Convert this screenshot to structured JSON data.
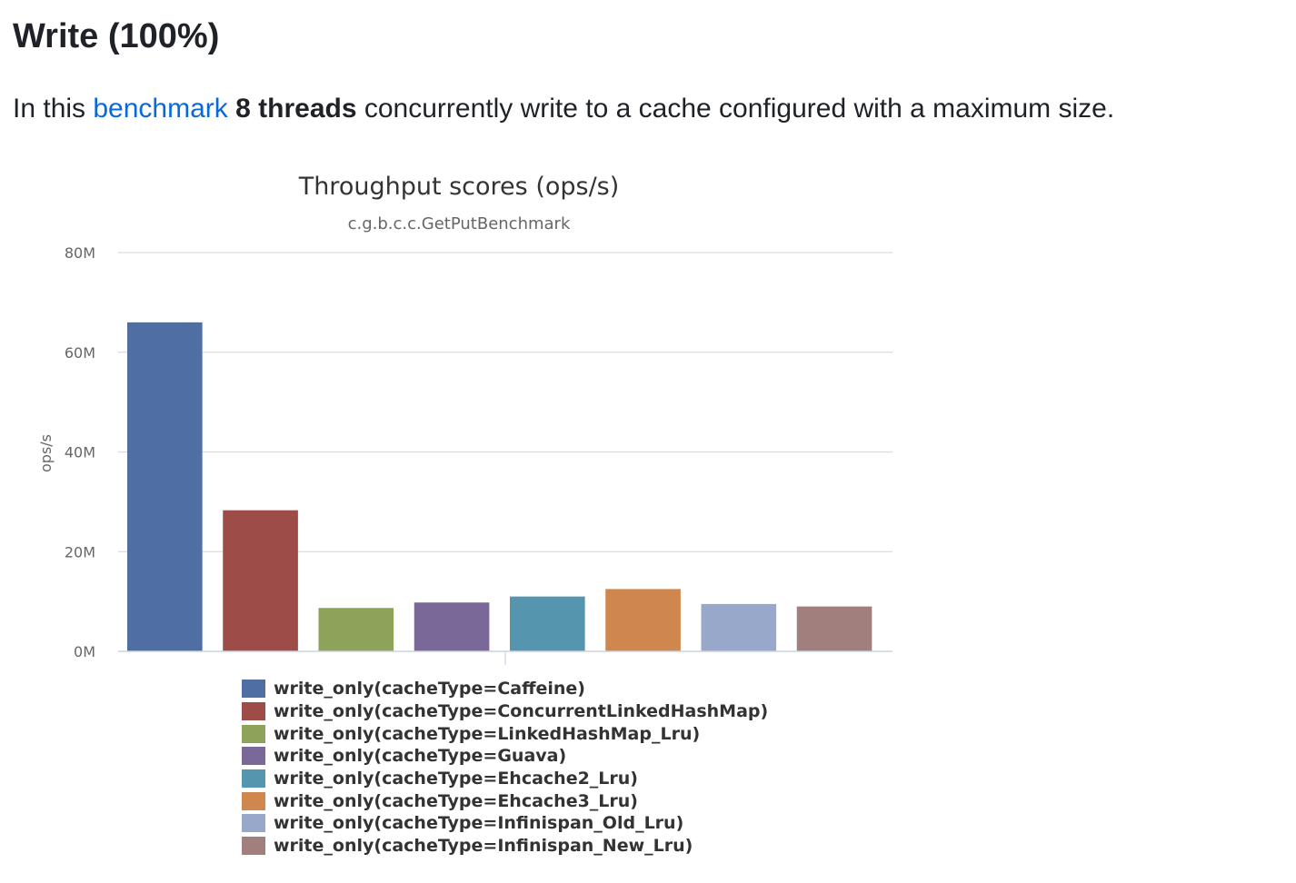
{
  "page": {
    "heading": "Write (100%)",
    "intro": {
      "prefix": "In this ",
      "link": "benchmark",
      "space": " ",
      "bold": "8 threads",
      "suffix": " concurrently write to a cache configured with a maximum size."
    }
  },
  "chart_data": {
    "type": "bar",
    "title": "Throughput scores (ops/s)",
    "subtitle": "c.g.b.c.c.GetPutBenchmark",
    "ylabel": "ops/s",
    "xlabel": "",
    "ylim": [
      0,
      80000000
    ],
    "yticks": [
      {
        "value": 0,
        "label": "0M"
      },
      {
        "value": 20000000,
        "label": "20M"
      },
      {
        "value": 40000000,
        "label": "40M"
      },
      {
        "value": 60000000,
        "label": "60M"
      },
      {
        "value": 80000000,
        "label": "80M"
      }
    ],
    "grid": true,
    "legend_position": "bottom",
    "series": [
      {
        "name": "write_only(cacheType=Caffeine)",
        "value": 66000000,
        "color": "#4f6ea3"
      },
      {
        "name": "write_only(cacheType=ConcurrentLinkedHashMap)",
        "value": 28300000,
        "color": "#9d4c48"
      },
      {
        "name": "write_only(cacheType=LinkedHashMap_Lru)",
        "value": 8700000,
        "color": "#8ea35a"
      },
      {
        "name": "write_only(cacheType=Guava)",
        "value": 9800000,
        "color": "#7a6898"
      },
      {
        "name": "write_only(cacheType=Ehcache2_Lru)",
        "value": 11000000,
        "color": "#5596ae"
      },
      {
        "name": "write_only(cacheType=Ehcache3_Lru)",
        "value": 12500000,
        "color": "#d0874e"
      },
      {
        "name": "write_only(cacheType=Infinispan_Old_Lru)",
        "value": 9500000,
        "color": "#97a8ca"
      },
      {
        "name": "write_only(cacheType=Infinispan_New_Lru)",
        "value": 9000000,
        "color": "#a07f7c"
      }
    ]
  }
}
